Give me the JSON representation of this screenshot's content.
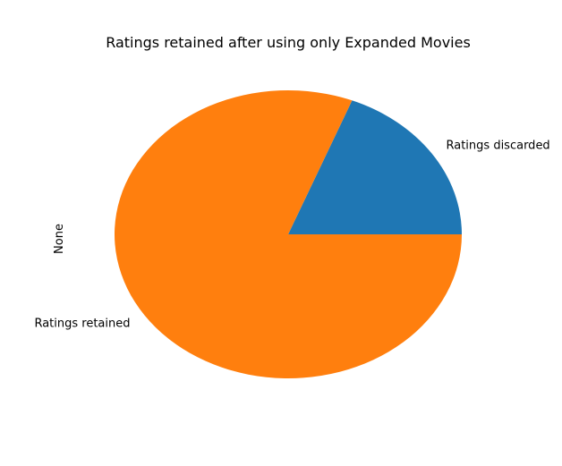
{
  "chart_data": {
    "type": "pie",
    "title": "Ratings retained after using only Expanded Movies",
    "ylabel": "None",
    "categories": [
      "Ratings discarded",
      "Ratings retained"
    ],
    "values": [
      19,
      81
    ],
    "colors": [
      "#1f77b4",
      "#ff7f0e"
    ],
    "start_angle_deg": 0,
    "direction": "counterclockwise",
    "legend": false,
    "grid": false
  }
}
